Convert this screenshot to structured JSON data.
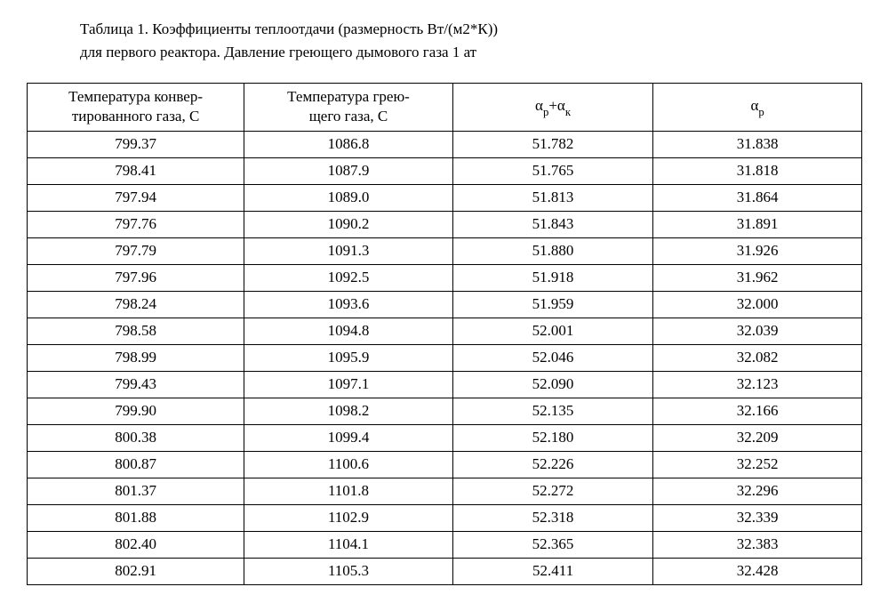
{
  "caption_line1": "Таблица 1.  Коэффициенты  теплоотдачи (размерность Вт/(м2*К))",
  "caption_line2": "для первого реактора. Давление греющего дымового газа 1 ат",
  "table": {
    "columns": [
      {
        "html": "Температура  конвер-<br>тированного газа, С",
        "width": "26%"
      },
      {
        "html": "Температура грею-<br>щего газа, С",
        "width": "25%"
      },
      {
        "html": "α<span class=\"sub\">р</span>+α<span class=\"sub\">к</span>",
        "width": "24%"
      },
      {
        "html": "α<span class=\"sub\">р</span>",
        "width": "25%"
      }
    ],
    "rows": [
      [
        "799.37",
        "1086.8",
        "51.782",
        "31.838"
      ],
      [
        "798.41",
        "1087.9",
        "51.765",
        "31.818"
      ],
      [
        "797.94",
        "1089.0",
        "51.813",
        "31.864"
      ],
      [
        "797.76",
        "1090.2",
        "51.843",
        "31.891"
      ],
      [
        "797.79",
        "1091.3",
        "51.880",
        "31.926"
      ],
      [
        "797.96",
        "1092.5",
        "51.918",
        "31.962"
      ],
      [
        "798.24",
        "1093.6",
        "51.959",
        "32.000"
      ],
      [
        "798.58",
        "1094.8",
        "52.001",
        "32.039"
      ],
      [
        "798.99",
        "1095.9",
        "52.046",
        "32.082"
      ],
      [
        "799.43",
        "1097.1",
        "52.090",
        "32.123"
      ],
      [
        "799.90",
        "1098.2",
        "52.135",
        "32.166"
      ],
      [
        "800.38",
        "1099.4",
        "52.180",
        "32.209"
      ],
      [
        "800.87",
        "1100.6",
        "52.226",
        "32.252"
      ],
      [
        "801.37",
        "1101.8",
        "52.272",
        "32.296"
      ],
      [
        "801.88",
        "1102.9",
        "52.318",
        "32.339"
      ],
      [
        "802.40",
        "1104.1",
        "52.365",
        "32.383"
      ],
      [
        "802.91",
        "1105.3",
        "52.411",
        "32.428"
      ]
    ]
  }
}
